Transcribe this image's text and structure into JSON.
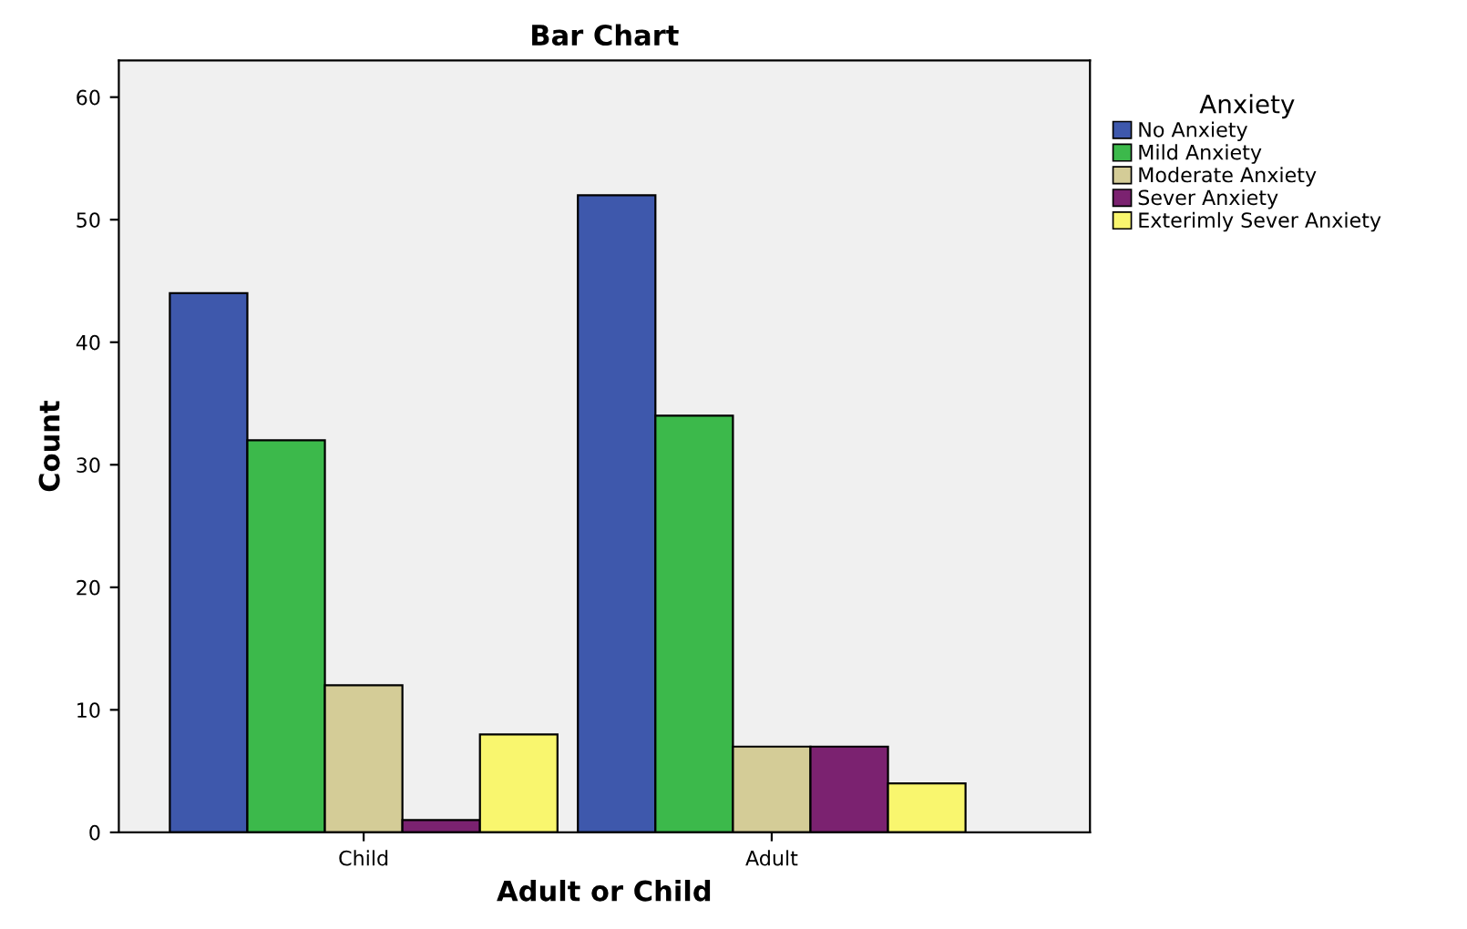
{
  "chart_data": {
    "type": "bar",
    "title": "Bar Chart",
    "xlabel": "Adult or Child",
    "ylabel": "Count",
    "legend_title": "Anxiety",
    "categories": [
      "Child",
      "Adult"
    ],
    "series": [
      {
        "name": "No Anxiety",
        "color": "#3e58ac",
        "values": [
          44,
          52
        ]
      },
      {
        "name": "Mild Anxiety",
        "color": "#3cb94b",
        "values": [
          32,
          34
        ]
      },
      {
        "name": "Moderate Anxiety",
        "color": "#d4cc97",
        "values": [
          12,
          7
        ]
      },
      {
        "name": "Sever Anxiety",
        "color": "#7b2270",
        "values": [
          1,
          7
        ]
      },
      {
        "name": "Exterimly Sever Anxiety",
        "color": "#f9f66e",
        "values": [
          8,
          4
        ]
      }
    ],
    "ylim": [
      0,
      63
    ],
    "yticks": [
      0,
      10,
      20,
      30,
      40,
      50,
      60
    ],
    "grid": false,
    "legend": "right"
  }
}
